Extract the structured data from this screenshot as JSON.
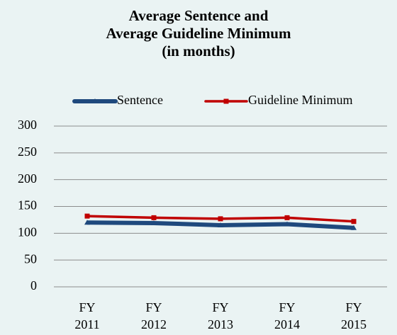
{
  "chart_data": {
    "type": "line",
    "title": "Average Sentence and\nAverage Guideline Minimum\n(in months)",
    "categories": [
      "FY 2011",
      "FY 2012",
      "FY 2013",
      "FY 2014",
      "FY 2015"
    ],
    "series": [
      {
        "name": "Sentence",
        "color": "#1f497d",
        "values": [
          120,
          119,
          115,
          117,
          110
        ]
      },
      {
        "name": "Guideline Minimum",
        "color": "#c00000",
        "values": [
          132,
          129,
          127,
          129,
          122
        ]
      }
    ],
    "ylim": [
      0,
      300
    ],
    "yticks": [
      0,
      50,
      100,
      150,
      200,
      250,
      300
    ],
    "grid": true
  }
}
